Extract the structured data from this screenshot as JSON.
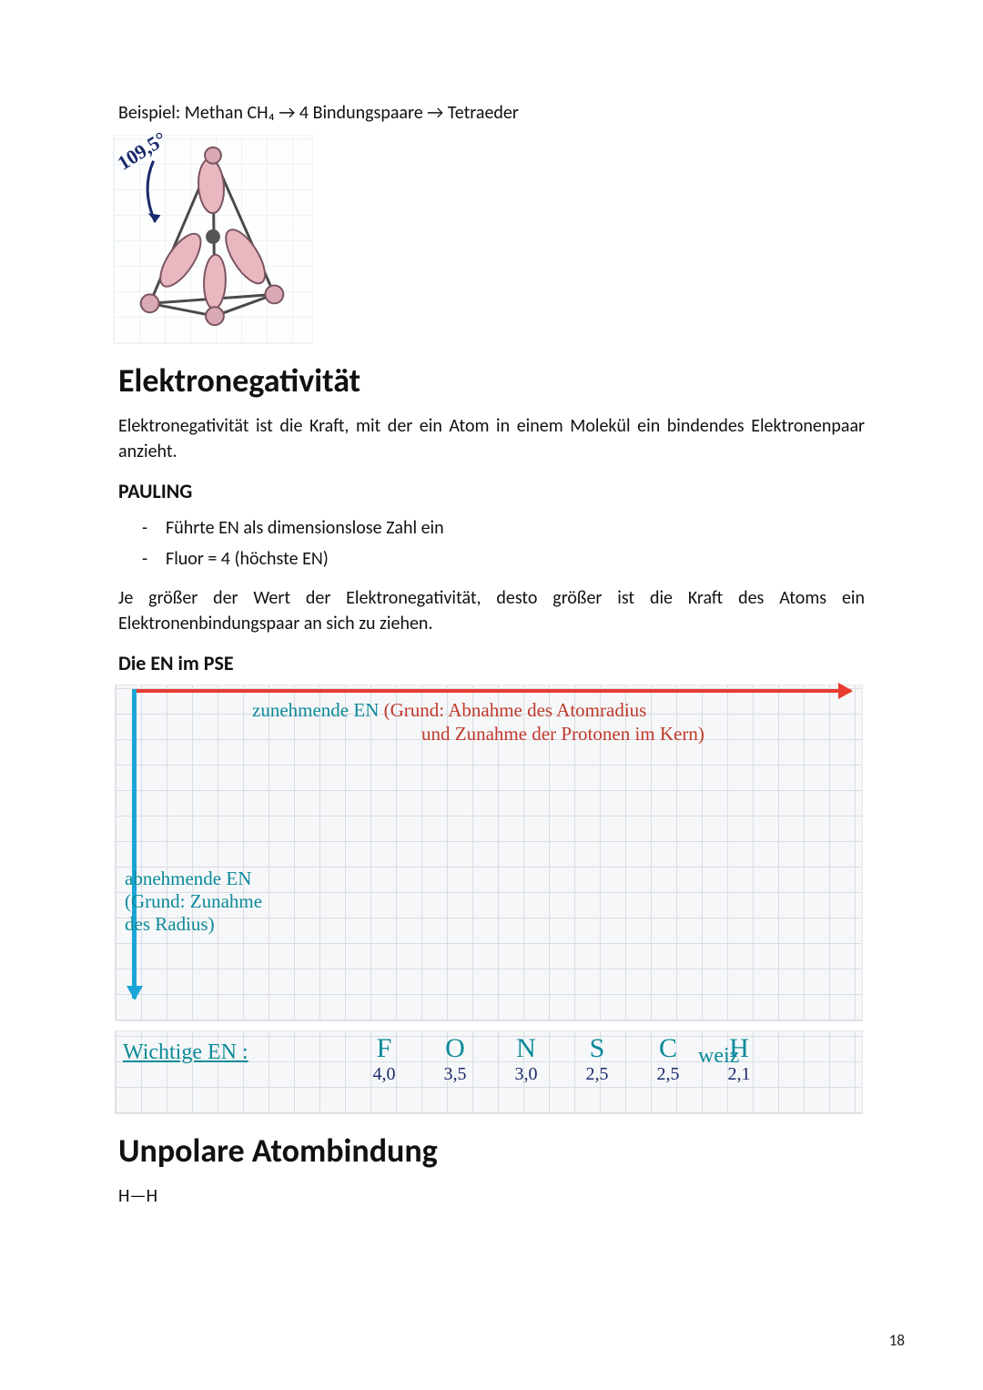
{
  "intro_line": "Beispiel: Methan CH₄ → 4 Bindungspaare → Tetraeder",
  "tetra": {
    "angle_label": "109,5°",
    "edge_color": "#4a4a4a",
    "lobe_fill": "#e8b7c0",
    "lobe_stroke": "#7a5560"
  },
  "h1": "Elektronegativität",
  "para1": "Elektronegativität ist die Kraft, mit der ein Atom in einem Molekül ein bindendes Elektronenpaar anzieht.",
  "pauling": {
    "heading": "PAULING",
    "items": [
      "Führte EN als dimensionslose Zahl ein",
      "Fluor = 4 (höchste EN)"
    ]
  },
  "para2": "Je größer der Wert der Elektronegativität, desto größer ist die Kraft des Atoms ein Elektronenbindungspaar an sich zu ziehen.",
  "pse": {
    "heading": "Die EN im PSE",
    "top_label_line1": "zunehmende EN",
    "top_label_line2_red": "(Grund: Abnahme des Atomradius",
    "top_label_line3_red": "und Zunahme der Protonen im Kern)",
    "left_label_line1": "abnehmende EN",
    "left_label_line2": "(Grund: Zunahme",
    "left_label_line3": "des Radius)",
    "h_arrow_color": "#e73c2f",
    "v_arrow_color": "#1aa6d6"
  },
  "en_row": {
    "label": "Wichtige EN :",
    "weiz": "weiz",
    "elements": [
      {
        "sym": "F",
        "val": "4,0"
      },
      {
        "sym": "O",
        "val": "3,5"
      },
      {
        "sym": "N",
        "val": "3,0"
      },
      {
        "sym": "S",
        "val": "2,5"
      },
      {
        "sym": "C",
        "val": "2,5"
      },
      {
        "sym": "H",
        "val": "2,1"
      }
    ]
  },
  "h1b": "Unpolare Atombindung",
  "hh": "H—H",
  "page_number": "18"
}
